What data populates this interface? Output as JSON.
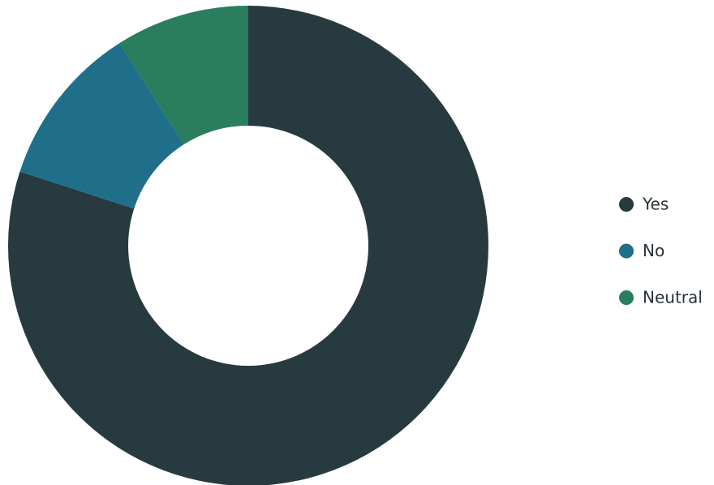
{
  "chart_data": {
    "type": "donut",
    "categories": [
      "Yes",
      "No",
      "Neutral"
    ],
    "values": [
      80,
      11,
      9
    ],
    "colors": [
      "#263a40",
      "#1f6f8b",
      "#2a7d5d"
    ],
    "legend": "right"
  }
}
